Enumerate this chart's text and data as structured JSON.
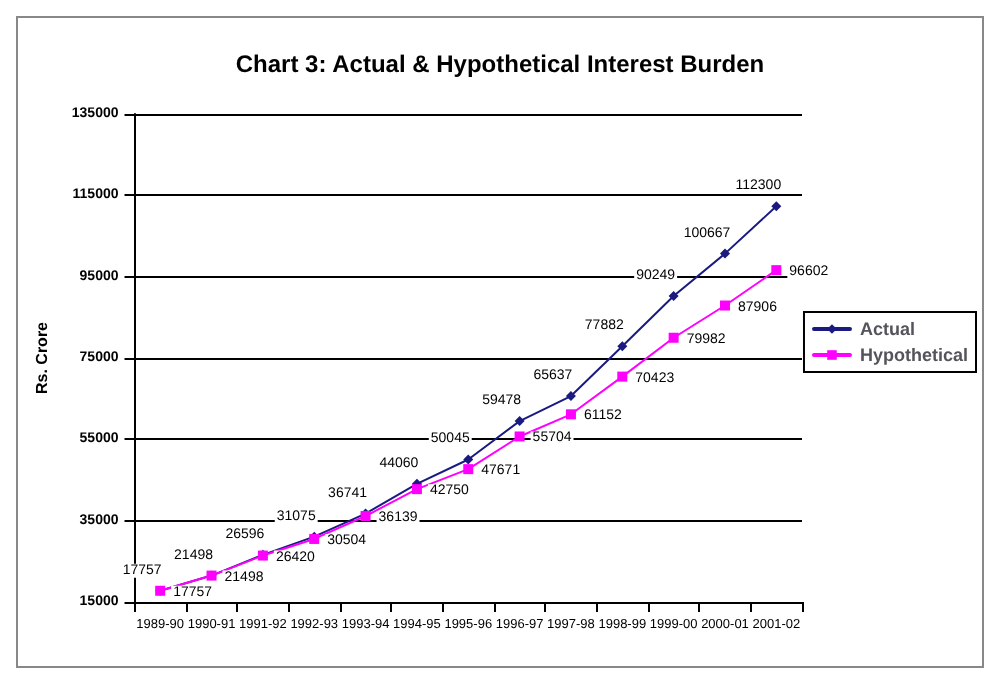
{
  "chart_data": {
    "type": "line",
    "title": "Chart 3: Actual & Hypothetical Interest Burden",
    "ylabel": "Rs. Crore",
    "categories": [
      "1989-90",
      "1990-91",
      "1991-92",
      "1992-93",
      "1993-94",
      "1994-95",
      "1995-96",
      "1996-97",
      "1997-98",
      "1998-99",
      "1999-00",
      "2000-01",
      "2001-02"
    ],
    "series": [
      {
        "name": "Actual",
        "color": "#1a1a80",
        "marker": "diamond",
        "values": [
          17757,
          21498,
          26596,
          31075,
          36741,
          44060,
          50045,
          59478,
          65637,
          77882,
          90249,
          100667,
          112300
        ]
      },
      {
        "name": "Hypothetical",
        "color": "#ff00ff",
        "marker": "square",
        "values": [
          17757,
          21498,
          26420,
          30504,
          36139,
          42750,
          47671,
          55704,
          61152,
          70423,
          79982,
          87906,
          96602
        ]
      }
    ],
    "ylim": [
      15000,
      135000
    ],
    "yticks": [
      15000,
      35000,
      55000,
      75000,
      95000,
      115000,
      135000
    ],
    "grid": "y",
    "legend": "right",
    "data_labels": true,
    "line_style": "solid"
  }
}
